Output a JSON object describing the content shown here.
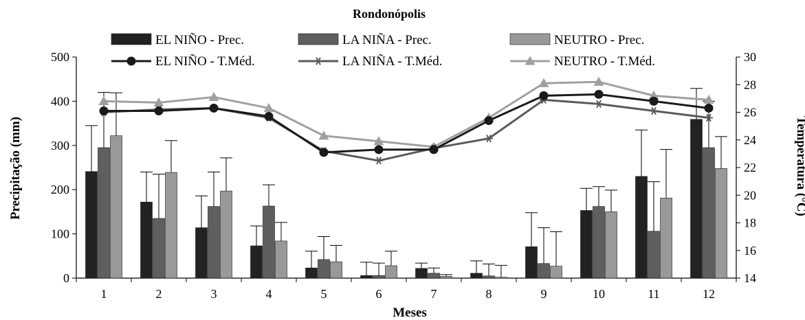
{
  "chart_data": {
    "type": "bar",
    "title": "Rondonópolis",
    "xlabel": "Meses",
    "ylabel": "Precipitação (mm)",
    "y2label": "Temperatura (°C)",
    "categories": [
      "1",
      "2",
      "3",
      "4",
      "5",
      "6",
      "7",
      "8",
      "9",
      "10",
      "11",
      "12"
    ],
    "ylim": [
      0,
      500
    ],
    "y2lim": [
      14,
      30
    ],
    "yticks": [
      "0",
      "100",
      "200",
      "300",
      "400",
      "500"
    ],
    "y2ticks": [
      "14",
      "16",
      "18",
      "20",
      "22",
      "24",
      "26",
      "28",
      "30"
    ],
    "grid": false,
    "legend_position": "top",
    "bar_series": [
      {
        "name": "EL NIÑO - Prec.",
        "color": "#222222",
        "values": [
          241,
          172,
          114,
          73,
          23,
          6,
          22,
          11,
          71,
          153,
          230,
          359
        ],
        "error": [
          104,
          68,
          72,
          45,
          38,
          30,
          12,
          28,
          77,
          50,
          105,
          70
        ]
      },
      {
        "name": "LA NIÑA - Prec.",
        "color": "#5f5f5f",
        "values": [
          295,
          135,
          162,
          163,
          42,
          6,
          11,
          5,
          33,
          162,
          106,
          295
        ],
        "error": [
          125,
          100,
          78,
          48,
          52,
          28,
          12,
          27,
          81,
          45,
          112,
          105
        ]
      },
      {
        "name": "NEUTRO - Prec.",
        "color": "#999999",
        "values": [
          322,
          239,
          197,
          84,
          37,
          28,
          4,
          2,
          27,
          150,
          181,
          248
        ],
        "error": [
          97,
          72,
          75,
          42,
          37,
          33,
          4,
          27,
          78,
          49,
          110,
          72
        ]
      }
    ],
    "line_series": [
      {
        "name": "EL NIÑO - T.Méd.",
        "color": "#1a1a1a",
        "marker": "circle",
        "values": [
          26.1,
          26.1,
          26.3,
          25.7,
          23.1,
          23.3,
          23.3,
          25.4,
          27.2,
          27.3,
          26.8,
          26.3
        ]
      },
      {
        "name": "LA NIÑA - T.Méd.",
        "color": "#5a5a5a",
        "marker": "asterisk",
        "values": [
          26.0,
          26.2,
          26.3,
          25.6,
          23.2,
          22.5,
          23.4,
          24.1,
          26.9,
          26.6,
          26.1,
          25.6
        ]
      },
      {
        "name": "NEUTRO - T.Méd.",
        "color": "#a0a0a0",
        "marker": "triangle",
        "values": [
          26.8,
          26.7,
          27.1,
          26.3,
          24.3,
          23.9,
          23.5,
          25.6,
          28.1,
          28.2,
          27.2,
          26.9
        ]
      }
    ]
  }
}
